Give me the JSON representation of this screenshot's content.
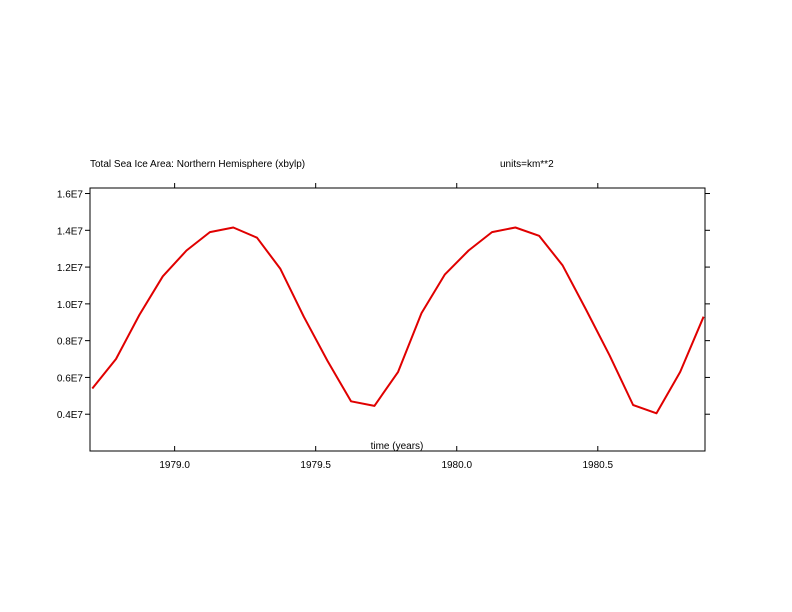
{
  "chart_data": {
    "type": "line",
    "title": "Total Sea Ice Area: Northern Hemisphere (xbylp)",
    "units_label": "units=km**2",
    "xlabel": "time (years)",
    "ylabel": "",
    "xlim": [
      1978.7,
      1980.88
    ],
    "ylim": [
      2000000.0,
      16300000.0
    ],
    "x_ticks": [
      {
        "value": 1979.0,
        "label": "1979.0"
      },
      {
        "value": 1979.5,
        "label": "1979.5"
      },
      {
        "value": 1980.0,
        "label": "1980.0"
      },
      {
        "value": 1980.5,
        "label": "1980.5"
      }
    ],
    "y_ticks": [
      {
        "value": 4000000.0,
        "label": "0.4E7"
      },
      {
        "value": 6000000.0,
        "label": "0.6E7"
      },
      {
        "value": 8000000.0,
        "label": "0.8E7"
      },
      {
        "value": 10000000.0,
        "label": "1.0E7"
      },
      {
        "value": 12000000.0,
        "label": "1.2E7"
      },
      {
        "value": 14000000.0,
        "label": "1.4E7"
      },
      {
        "value": 16000000.0,
        "label": "1.6E7"
      }
    ],
    "grid": false,
    "series": [
      {
        "color": "#e00000",
        "x": [
          1978.708,
          1978.792,
          1978.875,
          1978.958,
          1979.042,
          1979.125,
          1979.208,
          1979.292,
          1979.375,
          1979.458,
          1979.542,
          1979.625,
          1979.708,
          1979.792,
          1979.875,
          1979.958,
          1980.042,
          1980.125,
          1980.208,
          1980.292,
          1980.375,
          1980.458,
          1980.542,
          1980.625,
          1980.708,
          1980.792,
          1980.875
        ],
        "y": [
          5400000.0,
          7000000.0,
          9400000.0,
          11500000.0,
          12900000.0,
          13900000.0,
          14150000.0,
          13600000.0,
          11900000.0,
          9300000.0,
          6900000.0,
          4700000.0,
          4450000.0,
          6300000.0,
          9500000.0,
          11600000.0,
          12900000.0,
          13900000.0,
          14150000.0,
          13700000.0,
          12100000.0,
          9700000.0,
          7200000.0,
          4500000.0,
          4050000.0,
          6300000.0,
          9300000.0
        ]
      }
    ]
  }
}
